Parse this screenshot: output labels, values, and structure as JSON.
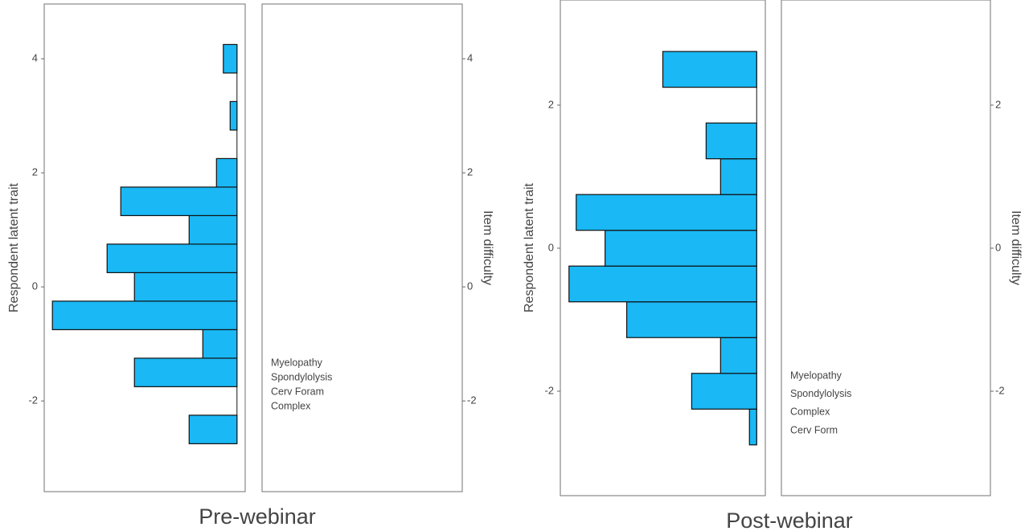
{
  "chart_data": [
    {
      "type": "histogram",
      "orientation": "horizontal",
      "title": "Pre-webinar",
      "ylabel": "Respondent latent trait",
      "y2label": "Item difficulty",
      "bins": [
        -2.75,
        -2.25,
        -1.75,
        -1.25,
        -0.75,
        -0.25,
        0.25,
        0.75,
        1.25,
        1.75,
        2.25,
        2.75,
        3.25,
        3.75,
        4.25
      ],
      "counts": [
        7,
        0,
        15,
        5,
        27,
        15,
        19,
        7,
        17,
        3,
        0,
        1,
        0,
        2
      ],
      "color": "#1ab8f5",
      "xlim": [
        28.2,
        -1.2
      ],
      "ylim": [
        -3.59,
        4.96
      ],
      "yticks": [
        -2,
        0,
        2,
        4
      ],
      "y2lim": [
        -3.59,
        4.96
      ],
      "y2ticks": [
        -2,
        0,
        2,
        4
      ],
      "item_labels": [
        "Myelopathy",
        "Spondylolysis",
        "Cerv Foram",
        "Complex"
      ]
    },
    {
      "type": "histogram",
      "orientation": "horizontal",
      "title": "Post-webinar",
      "ylabel": "Respondent latent trait",
      "y2label": "Item difficulty",
      "bins": [
        -2.75,
        -2.25,
        -1.75,
        -1.25,
        -0.75,
        -0.25,
        0.25,
        0.75,
        1.25,
        1.75,
        2.25,
        2.75
      ],
      "counts": [
        1,
        9,
        5,
        18,
        26,
        21,
        25,
        5,
        7,
        0,
        13
      ],
      "color": "#1ab8f5",
      "xlim": [
        27.2,
        -1.2
      ],
      "ylim": [
        -3.46,
        3.47
      ],
      "yticks": [
        -2,
        0,
        2
      ],
      "y2lim": [
        -3.46,
        3.47
      ],
      "y2ticks": [
        -2,
        0,
        2
      ],
      "item_labels": [
        "Myelopathy",
        "Spondylolysis",
        "Complex",
        "Cerv Form"
      ]
    }
  ]
}
